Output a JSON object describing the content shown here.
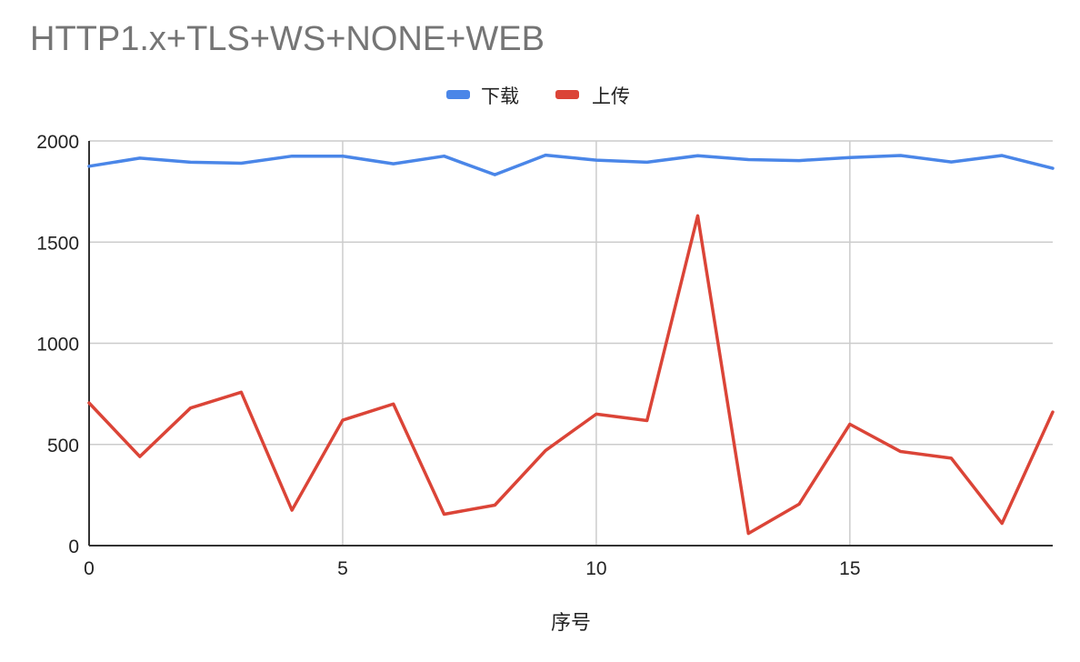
{
  "chart_data": {
    "type": "line",
    "title": "HTTP1.x+TLS+WS+NONE+WEB",
    "xlabel": "序号",
    "ylabel": "",
    "x": [
      0,
      1,
      2,
      3,
      4,
      5,
      6,
      7,
      8,
      9,
      10,
      11,
      12,
      13,
      14,
      15,
      16,
      17,
      18,
      19
    ],
    "xlim": [
      0,
      19
    ],
    "ylim": [
      0,
      2000
    ],
    "xticks": [
      0,
      5,
      10,
      15
    ],
    "yticks": [
      0,
      500,
      1000,
      1500,
      2000
    ],
    "grid": true,
    "legend_position": "top-center",
    "series": [
      {
        "name": "下载",
        "color": "#4a86e8",
        "values": [
          1875,
          1915,
          1895,
          1890,
          1925,
          1925,
          1887,
          1925,
          1833,
          1930,
          1905,
          1895,
          1927,
          1908,
          1903,
          1918,
          1928,
          1896,
          1928,
          1865
        ]
      },
      {
        "name": "上传",
        "color": "#db4437",
        "values": [
          705,
          440,
          680,
          758,
          175,
          620,
          700,
          155,
          200,
          470,
          650,
          618,
          1630,
          60,
          205,
          600,
          465,
          432,
          110,
          660
        ]
      }
    ]
  }
}
